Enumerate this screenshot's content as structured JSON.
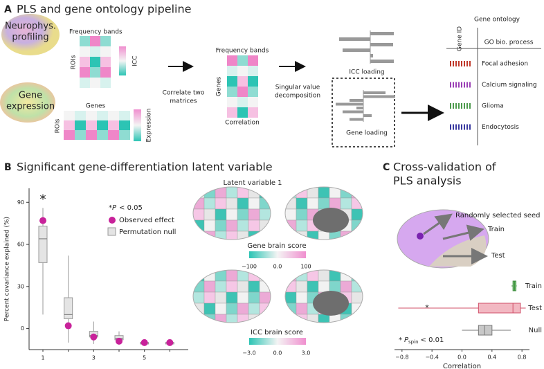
{
  "panel_a": {
    "letter": "A",
    "title": "PLS and gene ontology pipeline",
    "inputs": [
      [
        "Neurophys.",
        "profiling"
      ],
      [
        "Gene",
        "expression"
      ]
    ],
    "matrix1": {
      "top": "Frequency bands",
      "side": "ROIs",
      "colorbar": "ICC"
    },
    "matrix2": {
      "top": "Genes",
      "side": "ROIs",
      "colorbar": "Expression"
    },
    "step1": [
      "Correlate two",
      "matrices"
    ],
    "matrix3": {
      "top": "Frequency bands",
      "side": "Genes",
      "bottom": "Correlation"
    },
    "step2": [
      "Singular value",
      "decomposition"
    ],
    "loadings": [
      "ICC loading",
      "Gene loading"
    ],
    "go": {
      "title": "Gene ontology",
      "col1": "Gene ID",
      "col2": "GO bio. process",
      "rows": [
        "Focal adhesion",
        "Calcium signaling",
        "Glioma",
        "Endocytosis"
      ]
    }
  },
  "panel_b_maps": {
    "title": "Latent variable 1",
    "gene_bar": {
      "label": "Gene brain score",
      "ticks": [
        "−100",
        "0.0",
        "100"
      ]
    },
    "icc_bar": {
      "label": "ICC brain score",
      "ticks": [
        "−3.0",
        "0.0",
        "3.0"
      ]
    }
  },
  "chart_data": [
    {
      "type": "box",
      "letter": "B",
      "title": "Significant gene-differentiation latent variable",
      "ylabel": "Percent covariance explained (%)",
      "categories": [
        "1",
        null,
        "3",
        null,
        "5",
        null
      ],
      "ylim": [
        -15,
        100
      ],
      "yticks": [
        0,
        30,
        60,
        90
      ],
      "annotation": "*",
      "legend_note": [
        "*",
        "P",
        "< 0.05"
      ],
      "series": [
        {
          "name": "Observed effect",
          "color": "#c8229a",
          "values": [
            77,
            2,
            -6,
            -9,
            -10,
            -10
          ]
        },
        {
          "name": "Permutation null",
          "color": "#e4e4e4",
          "boxes": [
            {
              "whislo": 10,
              "q1": 47,
              "med": 64,
              "q3": 73,
              "whishi": 86
            },
            {
              "whislo": -10,
              "q1": 7,
              "med": 10,
              "q3": 22,
              "whishi": 52
            },
            {
              "whislo": -11,
              "q1": -6,
              "med": -5,
              "q3": -2,
              "whishi": 5
            },
            {
              "whislo": -10,
              "q1": -8,
              "med": -7,
              "q3": -5,
              "whishi": -2
            },
            {
              "whislo": -11,
              "q1": -11,
              "med": -10,
              "q3": -10,
              "whishi": -9
            },
            {
              "whislo": -11,
              "q1": -11,
              "med": -10,
              "q3": -10,
              "whishi": -9
            }
          ]
        }
      ]
    },
    {
      "type": "hbox",
      "letter": "C",
      "title": [
        "Cross-validation of",
        "PLS analysis"
      ],
      "brain_labels": [
        "Randomly selected seed",
        "Train",
        "Test"
      ],
      "xlabel": "Correlation",
      "xlim": [
        -0.9,
        0.9
      ],
      "xticks": [
        {
          "value": -0.8,
          "label": "−0.8"
        },
        {
          "value": -0.4,
          "label": "−0.4"
        },
        {
          "value": 0,
          "label": "0.0"
        },
        0.4,
        0.8
      ],
      "categories": [
        "Train",
        "Test",
        "Null"
      ],
      "colors": [
        "#7cc47c",
        "#f2b8c2",
        "#c8c8c8"
      ],
      "edge_colors": [
        "#3a8a3a",
        "#d0506a",
        "#777777"
      ],
      "annotation": "*",
      "note": [
        "*",
        "P",
        "spin",
        "< 0.01"
      ],
      "boxes": [
        {
          "whislo": 0.66,
          "q1": 0.68,
          "med": 0.7,
          "q3": 0.72,
          "whishi": 0.73
        },
        {
          "whislo": -0.85,
          "q1": 0.22,
          "med": 0.68,
          "q3": 0.78,
          "whishi": 0.85
        },
        {
          "whislo": 0.0,
          "q1": 0.22,
          "med": 0.3,
          "q3": 0.4,
          "whishi": 0.65
        }
      ]
    }
  ]
}
